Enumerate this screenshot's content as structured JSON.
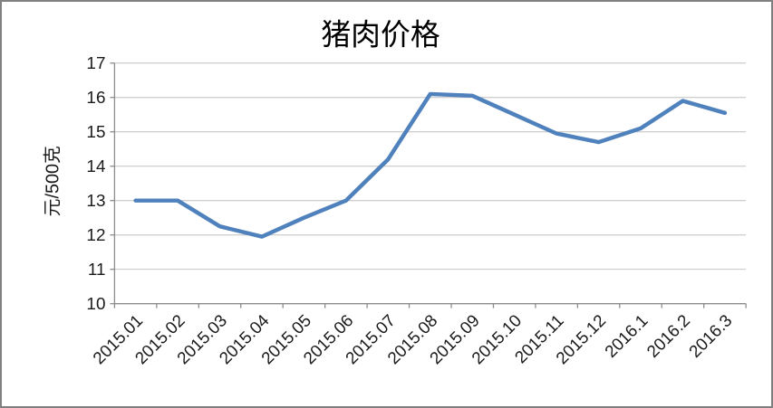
{
  "frame": {
    "background": "#FFFFFF",
    "border_color": "#808080"
  },
  "chart_data": {
    "type": "line",
    "title": "猪肉价格",
    "xlabel": "",
    "ylabel": "元/500克",
    "categories": [
      "2015.01",
      "2015.02",
      "2015.03",
      "2015.04",
      "2015.05",
      "2015.06",
      "2015.07",
      "2015.08",
      "2015.09",
      "2015.10",
      "2015.11",
      "2015.12",
      "2016.1",
      "2016.2",
      "2016.3"
    ],
    "values": [
      13.0,
      13.0,
      12.25,
      11.95,
      12.5,
      13.0,
      14.2,
      16.1,
      16.05,
      15.5,
      14.95,
      14.7,
      15.1,
      15.9,
      15.55
    ],
    "ylim": [
      10,
      17
    ],
    "yticks": [
      10,
      11,
      12,
      13,
      14,
      15,
      16,
      17
    ],
    "grid": true,
    "legend_position": "none",
    "x_tick_rotation_deg": -45,
    "line_color": "#4F81BD",
    "axis_color": "#8C8C8C",
    "gridline_color": "#BFBFBF",
    "tick_label_color": "#1A1A1A",
    "title_color": "#000000"
  }
}
